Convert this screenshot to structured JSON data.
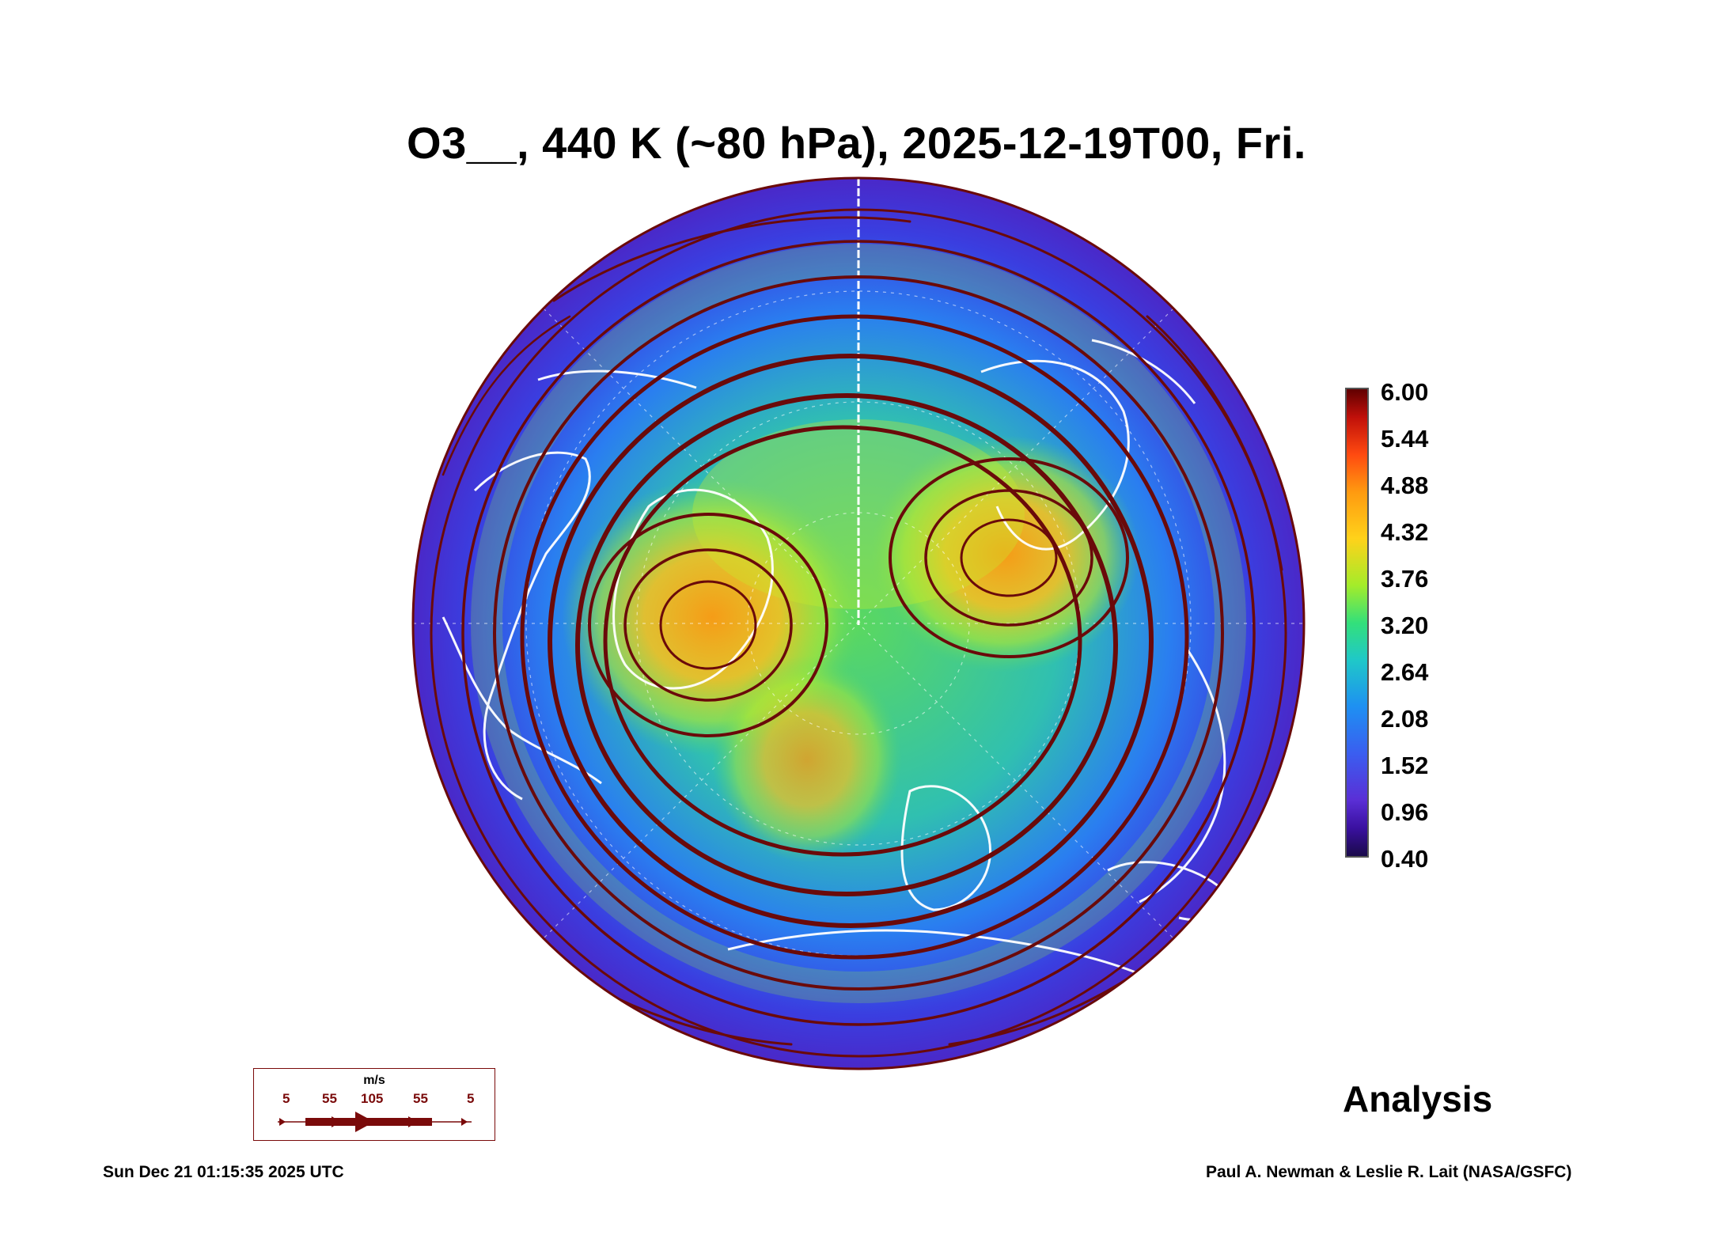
{
  "title": "O3__, 440 K (~80 hPa), 2025-12-19T00, Fri.",
  "colorbar": {
    "labels": [
      "6.00",
      "5.44",
      "4.88",
      "4.32",
      "3.76",
      "3.20",
      "2.64",
      "2.08",
      "1.52",
      "0.96",
      "0.40"
    ],
    "min": 0.4,
    "max": 6.0
  },
  "wind_legend": {
    "unit": "m/s",
    "values": [
      "5",
      "55",
      "105",
      "55",
      "5"
    ]
  },
  "analysis_label": "Analysis",
  "timestamp": "Sun Dec 21 01:15:35 2025 UTC",
  "credit": "Paul A. Newman & Leslie R. Lait (NASA/GSFC)",
  "colors": {
    "streamline": "#6a0a0a",
    "coastline": "#ffffff",
    "low": "#3a10a0",
    "high": "#ff9a10"
  }
}
